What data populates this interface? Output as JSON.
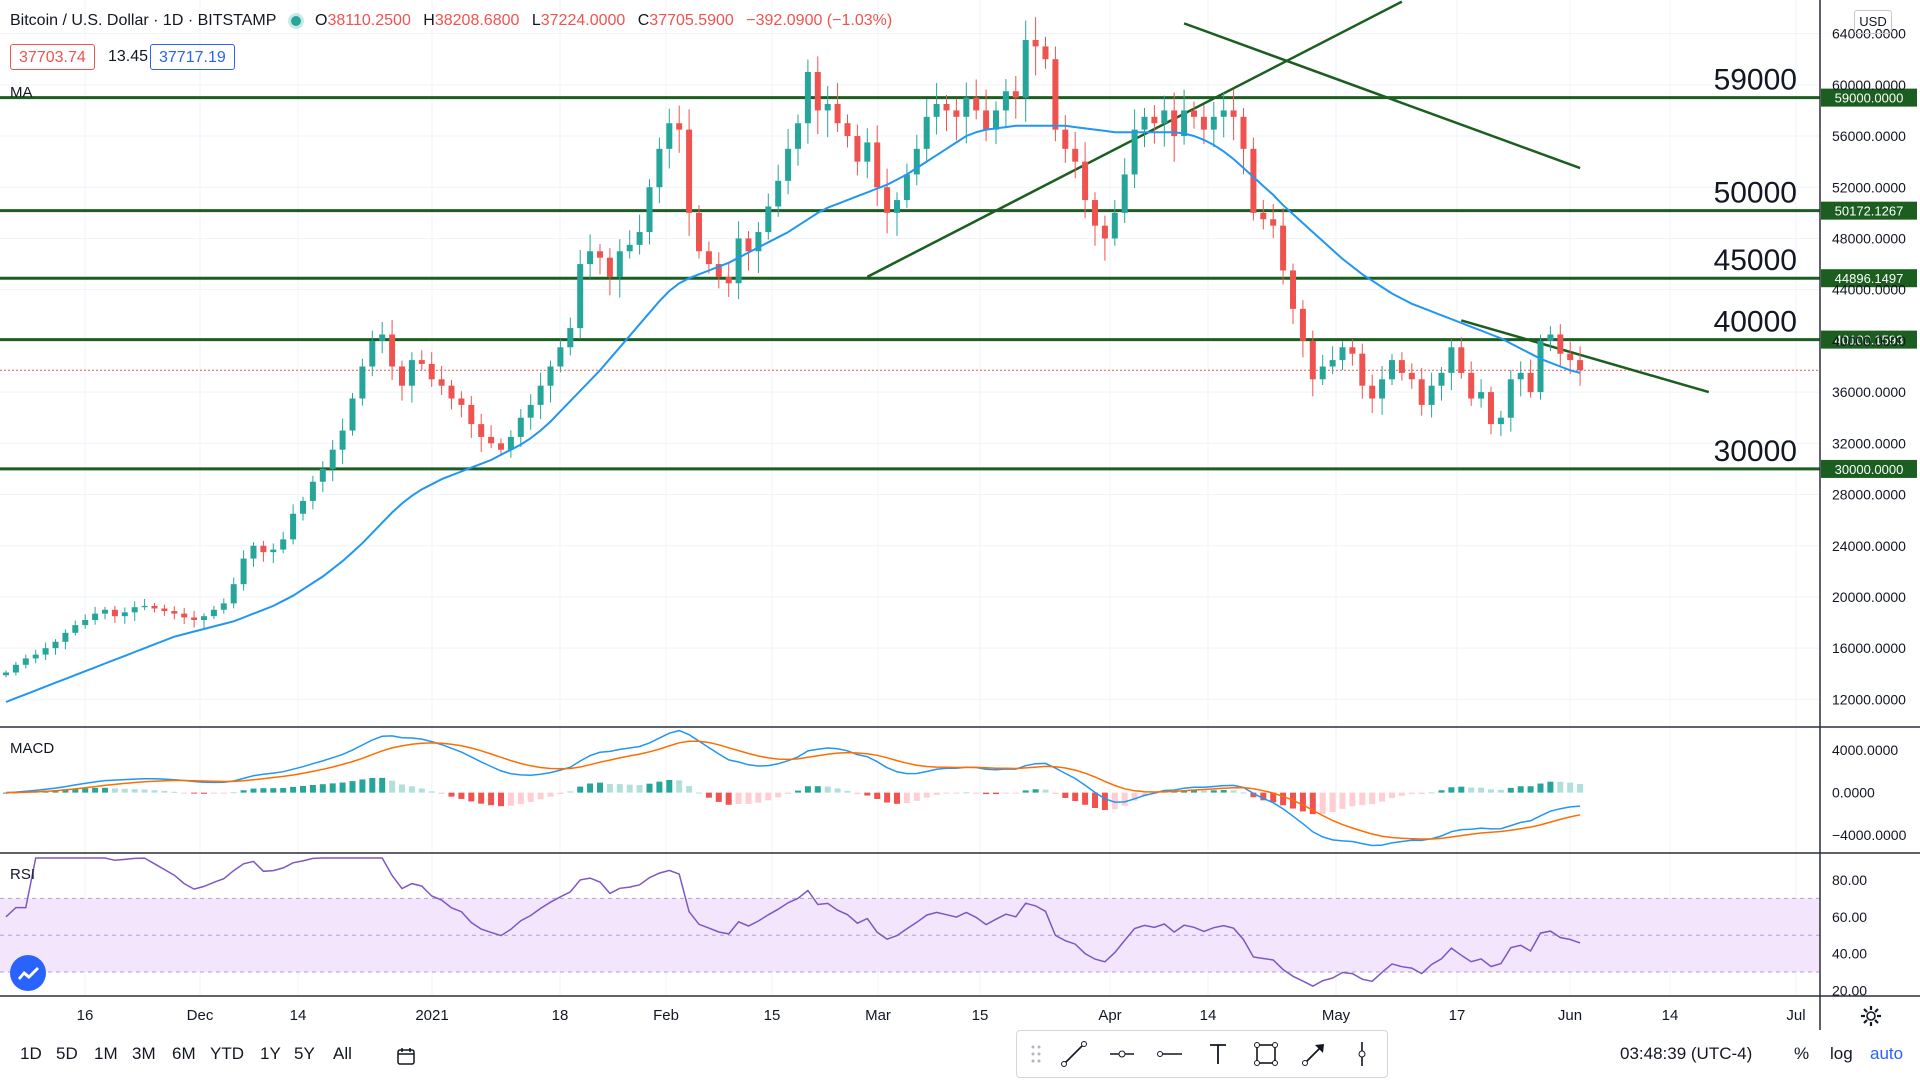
{
  "header": {
    "symbol": "Bitcoin / U.S. Dollar · 1D · BITSTAMP",
    "open_label": "O",
    "open": "38110.2500",
    "high_label": "H",
    "high": "38208.6800",
    "low_label": "L",
    "low": "37224.0000",
    "close_label": "C",
    "close": "37705.5900",
    "change": "−392.0900 (−1.03%)",
    "bid": "37703.74",
    "spread": "13.45",
    "ask": "37717.19",
    "currency": "USD"
  },
  "indicators": {
    "ma": "MA",
    "macd": "MACD",
    "rsi": "RSI"
  },
  "colors": {
    "up": "#26a69a",
    "down": "#ef5350",
    "ma": "#2196f3",
    "macd": "#2196f3",
    "signal": "#ff6d00",
    "rsi": "#7e57c2",
    "level": "#1b5e20",
    "accent": "#2962ff"
  },
  "chart_data": {
    "type": "candlestick",
    "price_axis": {
      "min": 10000,
      "max": 66000,
      "ticks": [
        "64000.0000",
        "60000.0000",
        "56000.0000",
        "52000.0000",
        "48000.0000",
        "44000.0000",
        "40000.0000",
        "36000.0000",
        "32000.0000",
        "28000.0000",
        "24000.0000",
        "20000.0000",
        "16000.0000",
        "12000.0000"
      ]
    },
    "x_ticks": [
      "16",
      "Dec",
      "14",
      "2021",
      "18",
      "Feb",
      "15",
      "Mar",
      "15",
      "Apr",
      "14",
      "May",
      "17",
      "Jun",
      "14",
      "Jul"
    ],
    "levels": [
      {
        "label": "59000",
        "axis_label": "59000.0000",
        "value": 59000
      },
      {
        "label": "50000",
        "axis_label": "50172.1267",
        "value": 50172
      },
      {
        "label": "45000",
        "axis_label": "44896.1497",
        "value": 44896
      },
      {
        "label": "40000",
        "axis_label": "40100.1593",
        "value": 40100
      },
      {
        "label": "30000",
        "axis_label": "30000.0000",
        "value": 30000
      }
    ],
    "last_price": 37705.59,
    "close_series": [
      14100,
      14700,
      15200,
      15500,
      16000,
      16500,
      17200,
      17800,
      18200,
      18700,
      19000,
      18500,
      18800,
      19200,
      19300,
      19100,
      18900,
      18700,
      18400,
      18200,
      18500,
      19000,
      19500,
      21000,
      23000,
      24000,
      23500,
      23700,
      24500,
      26500,
      27500,
      29000,
      30000,
      31500,
      33000,
      35500,
      38000,
      40000,
      40500,
      38000,
      36500,
      38500,
      38200,
      37000,
      36500,
      35500,
      35000,
      33500,
      32500,
      32000,
      31500,
      32500,
      34000,
      35000,
      36500,
      38000,
      39500,
      41000,
      46000,
      47000,
      46500,
      45000,
      47000,
      47500,
      48500,
      52000,
      55000,
      57000,
      56500,
      50000,
      47000,
      46000,
      45000,
      44500,
      48000,
      47000,
      48500,
      50500,
      52500,
      55000,
      57000,
      61000,
      58000,
      58500,
      57000,
      56000,
      54000,
      55500,
      52000,
      50000,
      51000,
      53000,
      55000,
      57500,
      58500,
      58000,
      57500,
      59000,
      58000,
      56500,
      58000,
      59500,
      59000,
      63500,
      63000,
      62000,
      56500,
      55000,
      54000,
      51000,
      49000,
      48000,
      50000,
      53000,
      56500,
      57500,
      57000,
      58000,
      56000,
      58000,
      57500,
      56500,
      57500,
      58000,
      57500,
      55000,
      50000,
      49500,
      49000,
      45500,
      42500,
      40000,
      37000,
      38000,
      38500,
      39500,
      39000,
      36500,
      35500,
      37000,
      38500,
      37500,
      37000,
      35000,
      36500,
      37500,
      39500,
      37500,
      35500,
      36000,
      33500,
      34000,
      37000,
      37500,
      36000,
      40000,
      40500,
      39000,
      38500,
      37705.59
    ],
    "ma_series": [
      11800,
      12100,
      12400,
      12700,
      13000,
      13300,
      13600,
      13900,
      14200,
      14500,
      14800,
      15100,
      15400,
      15700,
      16000,
      16300,
      16600,
      16900,
      17100,
      17300,
      17500,
      17700,
      17900,
      18100,
      18400,
      18700,
      19000,
      19300,
      19700,
      20100,
      20600,
      21100,
      21600,
      22200,
      22800,
      23500,
      24200,
      25000,
      25800,
      26600,
      27300,
      27900,
      28400,
      28800,
      29200,
      29500,
      29800,
      30100,
      30400,
      30700,
      31100,
      31500,
      31900,
      32400,
      33000,
      33700,
      34500,
      35300,
      36100,
      36900,
      37700,
      38600,
      39500,
      40400,
      41300,
      42200,
      43100,
      43900,
      44500,
      44900,
      45200,
      45500,
      45800,
      46100,
      46500,
      46900,
      47300,
      47700,
      48100,
      48500,
      49000,
      49500,
      50000,
      50400,
      50700,
      51000,
      51300,
      51600,
      51900,
      52200,
      52600,
      53000,
      53500,
      54000,
      54500,
      55000,
      55500,
      56000,
      56300,
      56500,
      56600,
      56700,
      56800,
      56800,
      56800,
      56800,
      56800,
      56800,
      56700,
      56600,
      56500,
      56400,
      56300,
      56300,
      56300,
      56300,
      56300,
      56300,
      56300,
      56200,
      56000,
      55700,
      55300,
      54800,
      54200,
      53500,
      52800,
      52100,
      51400,
      50600,
      49900,
      49200,
      48500,
      47800,
      47100,
      46400,
      45800,
      45200,
      44700,
      44200,
      43700,
      43300,
      42900,
      42600,
      42300,
      42000,
      41700,
      41400,
      41100,
      40800,
      40500,
      40200,
      39800,
      39400,
      39000,
      38600,
      38300,
      38000,
      37700,
      37500
    ],
    "macd_axis": {
      "ticks": [
        "4000.0000",
        "0.0000",
        "−4000.0000"
      ]
    },
    "rsi_axis": {
      "ticks": [
        "80.00",
        "60.00",
        "40.00",
        "20.00"
      ]
    }
  },
  "toolbar": {
    "timeframes": [
      "1D",
      "5D",
      "1M",
      "3M",
      "6M",
      "YTD",
      "1Y",
      "5Y",
      "All"
    ],
    "clock": "03:48:39 (UTC-4)",
    "percent": "%",
    "log": "log",
    "auto": "auto"
  }
}
